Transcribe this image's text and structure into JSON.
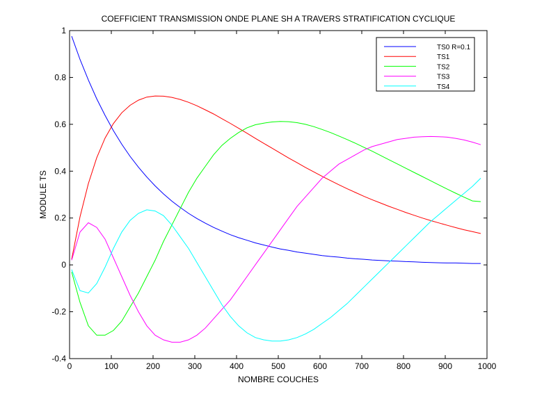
{
  "chart_data": {
    "type": "line",
    "title": "COEFFICIENT TRANSMISSION ONDE PLANE SH A TRAVERS STRATIFICATION CYCLIQUE",
    "xlabel": "NOMBRE COUCHES",
    "ylabel": "MODULE TS",
    "xlim": [
      0,
      1000
    ],
    "ylim": [
      -0.4,
      1
    ],
    "xticks": [
      0,
      100,
      200,
      300,
      400,
      500,
      600,
      700,
      800,
      900,
      1000
    ],
    "yticks": [
      -0.4,
      -0.2,
      0,
      0.2,
      0.4,
      0.6,
      0.8,
      1
    ],
    "grid": false,
    "legend_position": "top-right",
    "x": [
      5,
      25,
      45,
      65,
      85,
      105,
      125,
      145,
      165,
      185,
      205,
      225,
      245,
      265,
      285,
      305,
      325,
      345,
      365,
      385,
      405,
      425,
      445,
      465,
      485,
      505,
      525,
      545,
      565,
      585,
      605,
      625,
      645,
      665,
      685,
      705,
      725,
      745,
      765,
      785,
      805,
      825,
      845,
      865,
      885,
      905,
      925,
      945,
      965,
      985
    ],
    "series": [
      {
        "name": "TS0 R=0.1",
        "color": "#0000ff",
        "values": [
          0.976,
          0.877,
          0.789,
          0.709,
          0.638,
          0.573,
          0.515,
          0.463,
          0.417,
          0.375,
          0.337,
          0.303,
          0.272,
          0.245,
          0.22,
          0.198,
          0.178,
          0.16,
          0.144,
          0.129,
          0.116,
          0.105,
          0.094,
          0.085,
          0.076,
          0.068,
          0.062,
          0.055,
          0.05,
          0.045,
          0.04,
          0.036,
          0.033,
          0.029,
          0.026,
          0.024,
          0.021,
          0.019,
          0.017,
          0.016,
          0.014,
          0.013,
          0.011,
          0.01,
          0.009,
          0.008,
          0.008,
          0.007,
          0.006,
          0.006
        ]
      },
      {
        "name": "TS1",
        "color": "#ff0000",
        "values": [
          0.024,
          0.205,
          0.347,
          0.457,
          0.541,
          0.603,
          0.649,
          0.681,
          0.703,
          0.716,
          0.721,
          0.72,
          0.715,
          0.706,
          0.694,
          0.679,
          0.662,
          0.644,
          0.624,
          0.604,
          0.583,
          0.562,
          0.54,
          0.519,
          0.498,
          0.477,
          0.456,
          0.436,
          0.416,
          0.397,
          0.378,
          0.36,
          0.342,
          0.325,
          0.309,
          0.293,
          0.278,
          0.264,
          0.25,
          0.237,
          0.224,
          0.212,
          0.2,
          0.189,
          0.179,
          0.169,
          0.159,
          0.15,
          0.142,
          0.134
        ]
      },
      {
        "name": "TS2",
        "color": "#00ff00",
        "values": [
          -0.03,
          -0.16,
          -0.26,
          -0.3,
          -0.3,
          -0.28,
          -0.24,
          -0.18,
          -0.12,
          -0.05,
          0.02,
          0.1,
          0.17,
          0.24,
          0.31,
          0.37,
          0.42,
          0.47,
          0.51,
          0.54,
          0.565,
          0.585,
          0.598,
          0.605,
          0.61,
          0.612,
          0.611,
          0.607,
          0.6,
          0.59,
          0.578,
          0.565,
          0.55,
          0.535,
          0.519,
          0.502,
          0.485,
          0.467,
          0.449,
          0.431,
          0.413,
          0.395,
          0.377,
          0.359,
          0.341,
          0.323,
          0.306,
          0.289,
          0.273,
          0.27
        ]
      },
      {
        "name": "TS3",
        "color": "#ff00ff",
        "values": [
          0.02,
          0.14,
          0.18,
          0.16,
          0.11,
          0.03,
          -0.05,
          -0.13,
          -0.2,
          -0.26,
          -0.3,
          -0.32,
          -0.33,
          -0.33,
          -0.32,
          -0.3,
          -0.27,
          -0.23,
          -0.19,
          -0.15,
          -0.1,
          -0.05,
          0.0,
          0.05,
          0.1,
          0.15,
          0.2,
          0.25,
          0.29,
          0.33,
          0.37,
          0.4,
          0.43,
          0.45,
          0.47,
          0.49,
          0.505,
          0.515,
          0.525,
          0.535,
          0.54,
          0.545,
          0.547,
          0.548,
          0.547,
          0.545,
          0.54,
          0.533,
          0.524,
          0.513
        ]
      },
      {
        "name": "TS4",
        "color": "#00ffff",
        "values": [
          -0.02,
          -0.11,
          -0.12,
          -0.08,
          -0.01,
          0.07,
          0.14,
          0.19,
          0.22,
          0.235,
          0.23,
          0.21,
          0.17,
          0.12,
          0.07,
          0.01,
          -0.05,
          -0.11,
          -0.17,
          -0.22,
          -0.26,
          -0.29,
          -0.31,
          -0.32,
          -0.325,
          -0.325,
          -0.32,
          -0.31,
          -0.295,
          -0.275,
          -0.25,
          -0.225,
          -0.195,
          -0.165,
          -0.13,
          -0.095,
          -0.06,
          -0.025,
          0.01,
          0.045,
          0.08,
          0.115,
          0.15,
          0.185,
          0.215,
          0.245,
          0.275,
          0.305,
          0.335,
          0.37
        ]
      }
    ]
  }
}
